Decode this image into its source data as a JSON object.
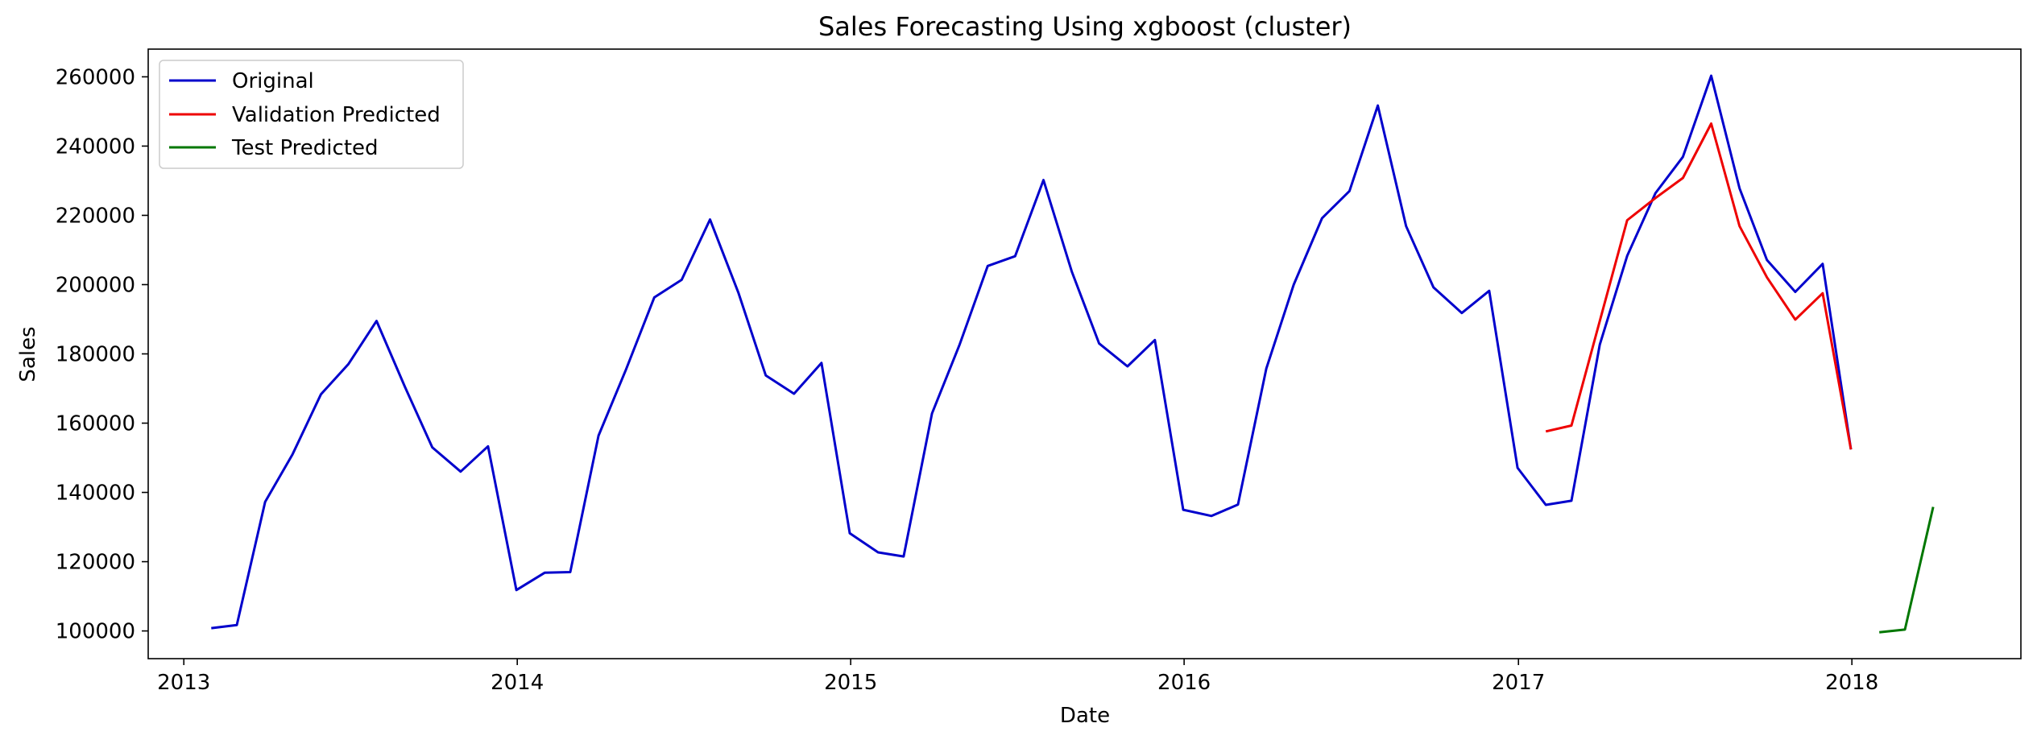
{
  "chart_data": {
    "type": "line",
    "title": "Sales Forecasting Using xgboost (cluster)",
    "xlabel": "Date",
    "ylabel": "Sales",
    "x_range": [
      "2012-11-23",
      "2018-07-05"
    ],
    "ylim": [
      92000,
      268000
    ],
    "xticks": [
      {
        "date": "2013-01-01",
        "label": "2013"
      },
      {
        "date": "2014-01-01",
        "label": "2014"
      },
      {
        "date": "2015-01-01",
        "label": "2015"
      },
      {
        "date": "2016-01-01",
        "label": "2016"
      },
      {
        "date": "2017-01-01",
        "label": "2017"
      },
      {
        "date": "2018-01-01",
        "label": "2018"
      }
    ],
    "yticks": [
      {
        "value": 100000,
        "label": "100000"
      },
      {
        "value": 120000,
        "label": "120000"
      },
      {
        "value": 140000,
        "label": "140000"
      },
      {
        "value": 160000,
        "label": "160000"
      },
      {
        "value": 180000,
        "label": "180000"
      },
      {
        "value": 200000,
        "label": "200000"
      },
      {
        "value": 220000,
        "label": "220000"
      },
      {
        "value": 240000,
        "label": "240000"
      },
      {
        "value": 260000,
        "label": "260000"
      }
    ],
    "grid": false,
    "legend_position": "top-left",
    "series": [
      {
        "name": "Original",
        "color": "#0000cc",
        "x": [
          "2013-01-31",
          "2013-02-28",
          "2013-03-31",
          "2013-04-30",
          "2013-05-31",
          "2013-06-30",
          "2013-07-31",
          "2013-08-31",
          "2013-09-30",
          "2013-10-31",
          "2013-11-30",
          "2013-12-31",
          "2014-01-31",
          "2014-02-28",
          "2014-03-31",
          "2014-04-30",
          "2014-05-31",
          "2014-06-30",
          "2014-07-31",
          "2014-08-31",
          "2014-09-30",
          "2014-10-31",
          "2014-11-30",
          "2014-12-31",
          "2015-01-31",
          "2015-02-28",
          "2015-03-31",
          "2015-04-30",
          "2015-05-31",
          "2015-06-30",
          "2015-07-31",
          "2015-08-31",
          "2015-09-30",
          "2015-10-31",
          "2015-11-30",
          "2015-12-31",
          "2016-01-31",
          "2016-02-29",
          "2016-03-31",
          "2016-04-30",
          "2016-05-31",
          "2016-06-30",
          "2016-07-31",
          "2016-08-31",
          "2016-09-30",
          "2016-10-31",
          "2016-11-30",
          "2016-12-31",
          "2017-01-31",
          "2017-02-28",
          "2017-03-31",
          "2017-04-30",
          "2017-05-31",
          "2017-06-30",
          "2017-07-31",
          "2017-08-31",
          "2017-09-30",
          "2017-10-31",
          "2017-11-30",
          "2017-12-31"
        ],
        "values": [
          100800,
          101700,
          137300,
          151000,
          168300,
          177000,
          189500,
          170500,
          153000,
          146000,
          153300,
          111800,
          116800,
          117000,
          156400,
          175500,
          196300,
          201400,
          218800,
          197700,
          173800,
          168500,
          177400,
          128200,
          122700,
          121500,
          162800,
          182500,
          205400,
          208200,
          230200,
          203800,
          183000,
          176400,
          184000,
          135000,
          133200,
          136500,
          175800,
          200000,
          219200,
          227000,
          251700,
          216900,
          199200,
          191800,
          198200,
          147100,
          136400,
          137600,
          182700,
          208300,
          226400,
          236900,
          260300,
          227800,
          207100,
          197900,
          206000,
          152400
        ]
      },
      {
        "name": "Validation Predicted",
        "color": "#ee0000",
        "x": [
          "2017-01-31",
          "2017-02-28",
          "2017-03-31",
          "2017-04-30",
          "2017-05-31",
          "2017-06-30",
          "2017-07-31",
          "2017-08-31",
          "2017-09-30",
          "2017-10-31",
          "2017-11-30",
          "2017-12-31"
        ],
        "values": [
          157600,
          159300,
          189500,
          218600,
          225000,
          230800,
          246500,
          216900,
          202100,
          189900,
          197500,
          152400
        ]
      },
      {
        "name": "Test Predicted",
        "color": "#007700",
        "x": [
          "2018-01-31",
          "2018-02-28",
          "2018-03-31"
        ],
        "values": [
          99600,
          100400,
          135800
        ]
      }
    ]
  }
}
